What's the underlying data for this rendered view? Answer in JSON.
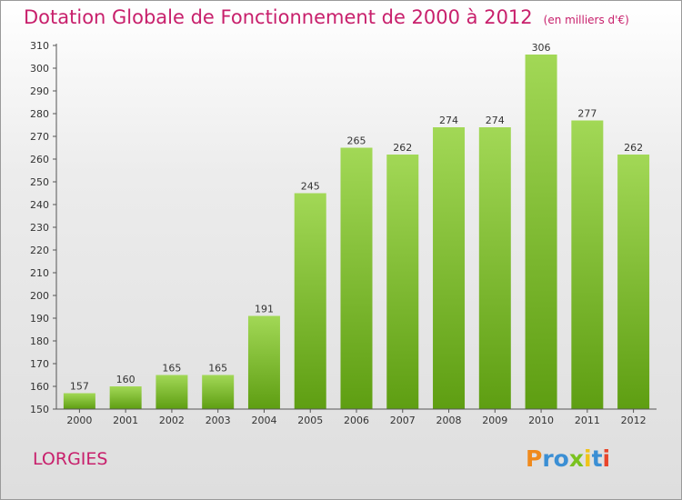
{
  "title": "Dotation Globale de Fonctionnement de 2000 à 2012",
  "unit": "(en milliers d'€)",
  "commune": "LORGIES",
  "logo": {
    "letters": [
      "P",
      "r",
      "o",
      "x",
      "i",
      "t",
      "i"
    ],
    "colors": [
      "#f08a1c",
      "#3b8fd4",
      "#3b8fd4",
      "#7ac21f",
      "#f0c419",
      "#3b8fd4",
      "#e8452c"
    ]
  },
  "colors": {
    "title": "#c8206c",
    "bar_light": "#a2d856",
    "bar_dark": "#5e9e12"
  },
  "chart_data": {
    "type": "bar",
    "title": "Dotation Globale de Fonctionnement de 2000 à 2012",
    "xlabel": "",
    "ylabel": "",
    "categories": [
      "2000",
      "2001",
      "2002",
      "2003",
      "2004",
      "2005",
      "2006",
      "2007",
      "2008",
      "2009",
      "2010",
      "2011",
      "2012"
    ],
    "values": [
      157,
      160,
      165,
      165,
      191,
      245,
      265,
      262,
      274,
      274,
      306,
      277,
      262
    ],
    "ylim": [
      150,
      310
    ],
    "yticks": [
      150,
      160,
      170,
      180,
      190,
      200,
      210,
      220,
      230,
      240,
      250,
      260,
      270,
      280,
      290,
      300,
      310
    ],
    "grid": false,
    "legend": "none"
  }
}
